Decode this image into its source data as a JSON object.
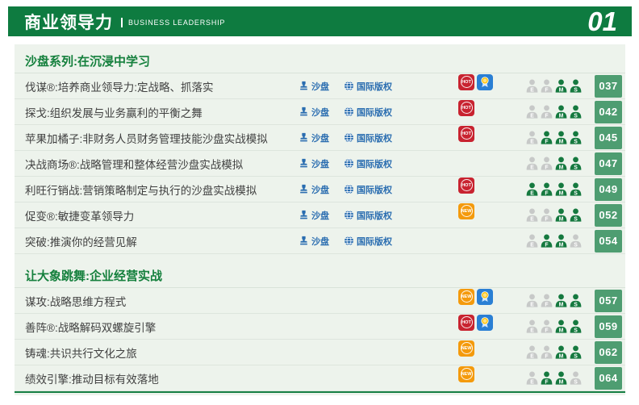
{
  "header": {
    "title": "商业领导力",
    "subtitle": "BUSINESS LEADERSHIP",
    "chapter_number": "01"
  },
  "badges_legend": {
    "sandbox_label": "沙盘",
    "intl_label": "国际版权",
    "hot_label": "HOT",
    "new_label": "NEW",
    "medal_icon": "award-medal-icon",
    "sandbox_icon": "stamp-icon",
    "intl_icon": "globe-icon"
  },
  "audience_levels": [
    "E",
    "F",
    "M",
    "S"
  ],
  "colors": {
    "header_green": "#0e7b40",
    "panel_bg": "#edf3ec",
    "section_title_green": "#15803d",
    "badge_blue": "#2a6db0",
    "hot_red": "#c82330",
    "new_orange": "#f49a0c",
    "medal_blue": "#2a7fd4",
    "page_box_green": "#4e9d71",
    "audience_active_green": "#15793f",
    "audience_inactive_gray": "#c7c9c8"
  },
  "sections": [
    {
      "title": "沙盘系列:在沉浸中学习",
      "rows": [
        {
          "title": "伐谋®:培养商业领导力:定战略、抓落实",
          "sandbox": true,
          "intl": true,
          "tag": "HOT",
          "medal": true,
          "audience": [
            "M",
            "S"
          ],
          "page": "037"
        },
        {
          "title": "探戈:组织发展与业务赢利的平衡之舞",
          "sandbox": true,
          "intl": true,
          "tag": "HOT",
          "medal": false,
          "audience": [
            "M",
            "S"
          ],
          "page": "042"
        },
        {
          "title": "苹果加橘子:非财务人员财务管理技能沙盘实战模拟",
          "sandbox": true,
          "intl": true,
          "tag": "HOT",
          "medal": false,
          "audience": [
            "F",
            "M",
            "S"
          ],
          "page": "045"
        },
        {
          "title": "决战商场®:战略管理和整体经营沙盘实战模拟",
          "sandbox": true,
          "intl": true,
          "tag": null,
          "medal": false,
          "audience": [
            "M",
            "S"
          ],
          "page": "047"
        },
        {
          "title": "利旺行销战:营销策略制定与执行的沙盘实战模拟",
          "sandbox": true,
          "intl": true,
          "tag": "HOT",
          "medal": false,
          "audience": [
            "E",
            "F",
            "M",
            "S"
          ],
          "page": "049"
        },
        {
          "title": "促变®:敏捷变革领导力",
          "sandbox": true,
          "intl": true,
          "tag": "NEW",
          "medal": false,
          "audience": [
            "M",
            "S"
          ],
          "page": "052"
        },
        {
          "title": "突破:推演你的经营见解",
          "sandbox": true,
          "intl": true,
          "tag": null,
          "medal": false,
          "audience": [
            "F",
            "M"
          ],
          "page": "054"
        }
      ]
    },
    {
      "title": "让大象跳舞:企业经营实战",
      "rows": [
        {
          "title": "谋攻:战略思维方程式",
          "sandbox": false,
          "intl": false,
          "tag": "NEW",
          "medal": true,
          "audience": [
            "M",
            "S"
          ],
          "page": "057"
        },
        {
          "title": "善阵®:战略解码双螺旋引擎",
          "sandbox": false,
          "intl": false,
          "tag": "HOT",
          "medal": true,
          "audience": [
            "M",
            "S"
          ],
          "page": "059"
        },
        {
          "title": "铸魂:共识共行文化之旅",
          "sandbox": false,
          "intl": false,
          "tag": "NEW",
          "medal": false,
          "audience": [
            "M",
            "S"
          ],
          "page": "062"
        },
        {
          "title": "绩效引擎:推动目标有效落地",
          "sandbox": false,
          "intl": false,
          "tag": "NEW",
          "medal": false,
          "audience": [
            "F",
            "M"
          ],
          "page": "064"
        }
      ]
    }
  ]
}
